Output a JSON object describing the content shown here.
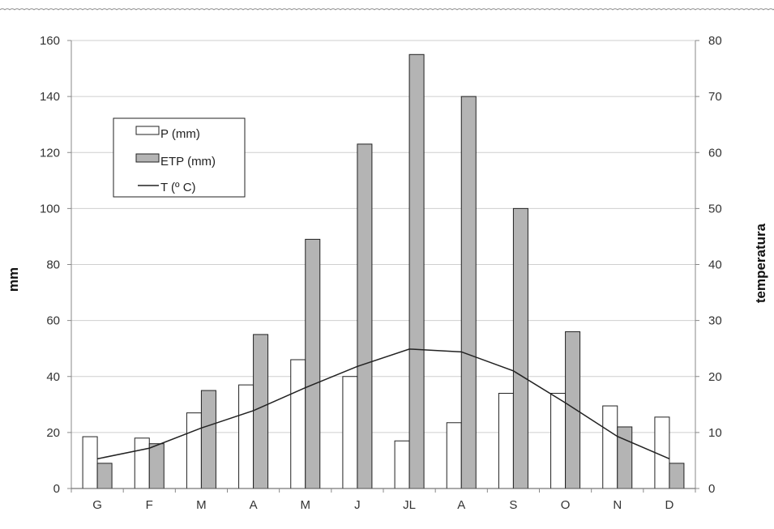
{
  "chart_data": {
    "type": "bar",
    "categories": [
      "G",
      "F",
      "M",
      "A",
      "M",
      "J",
      "JL",
      "A",
      "S",
      "O",
      "N",
      "D"
    ],
    "series": [
      {
        "name": "P (mm)",
        "type": "bar",
        "axis": "left",
        "color": "#ffffff",
        "values": [
          18.5,
          18,
          27,
          37,
          46,
          40,
          17,
          23.5,
          34,
          34,
          29.5,
          25.5
        ]
      },
      {
        "name": "ETP (mm)",
        "type": "bar",
        "axis": "left",
        "color": "#b4b4b4",
        "values": [
          9,
          16,
          35,
          55,
          89,
          123,
          155,
          140,
          100,
          56,
          22,
          9
        ]
      },
      {
        "name": "T (º C)",
        "type": "line",
        "axis": "right",
        "color": "#222222",
        "values": [
          5.3,
          7.2,
          10.8,
          13.9,
          18.0,
          21.8,
          24.9,
          24.4,
          21.0,
          15.3,
          9.3,
          5.3
        ]
      }
    ],
    "ylabel": "mm",
    "ylabel_right": "temperatura",
    "ylim": [
      0,
      160
    ],
    "ylim_right": [
      0,
      80
    ],
    "yticks": [
      "0",
      "20",
      "40",
      "60",
      "80",
      "100",
      "120",
      "140",
      "160"
    ],
    "yticks_right": [
      "0",
      "10",
      "20",
      "30",
      "40",
      "50",
      "60",
      "70",
      "80"
    ],
    "grid": true,
    "legend_position": "top-left"
  }
}
